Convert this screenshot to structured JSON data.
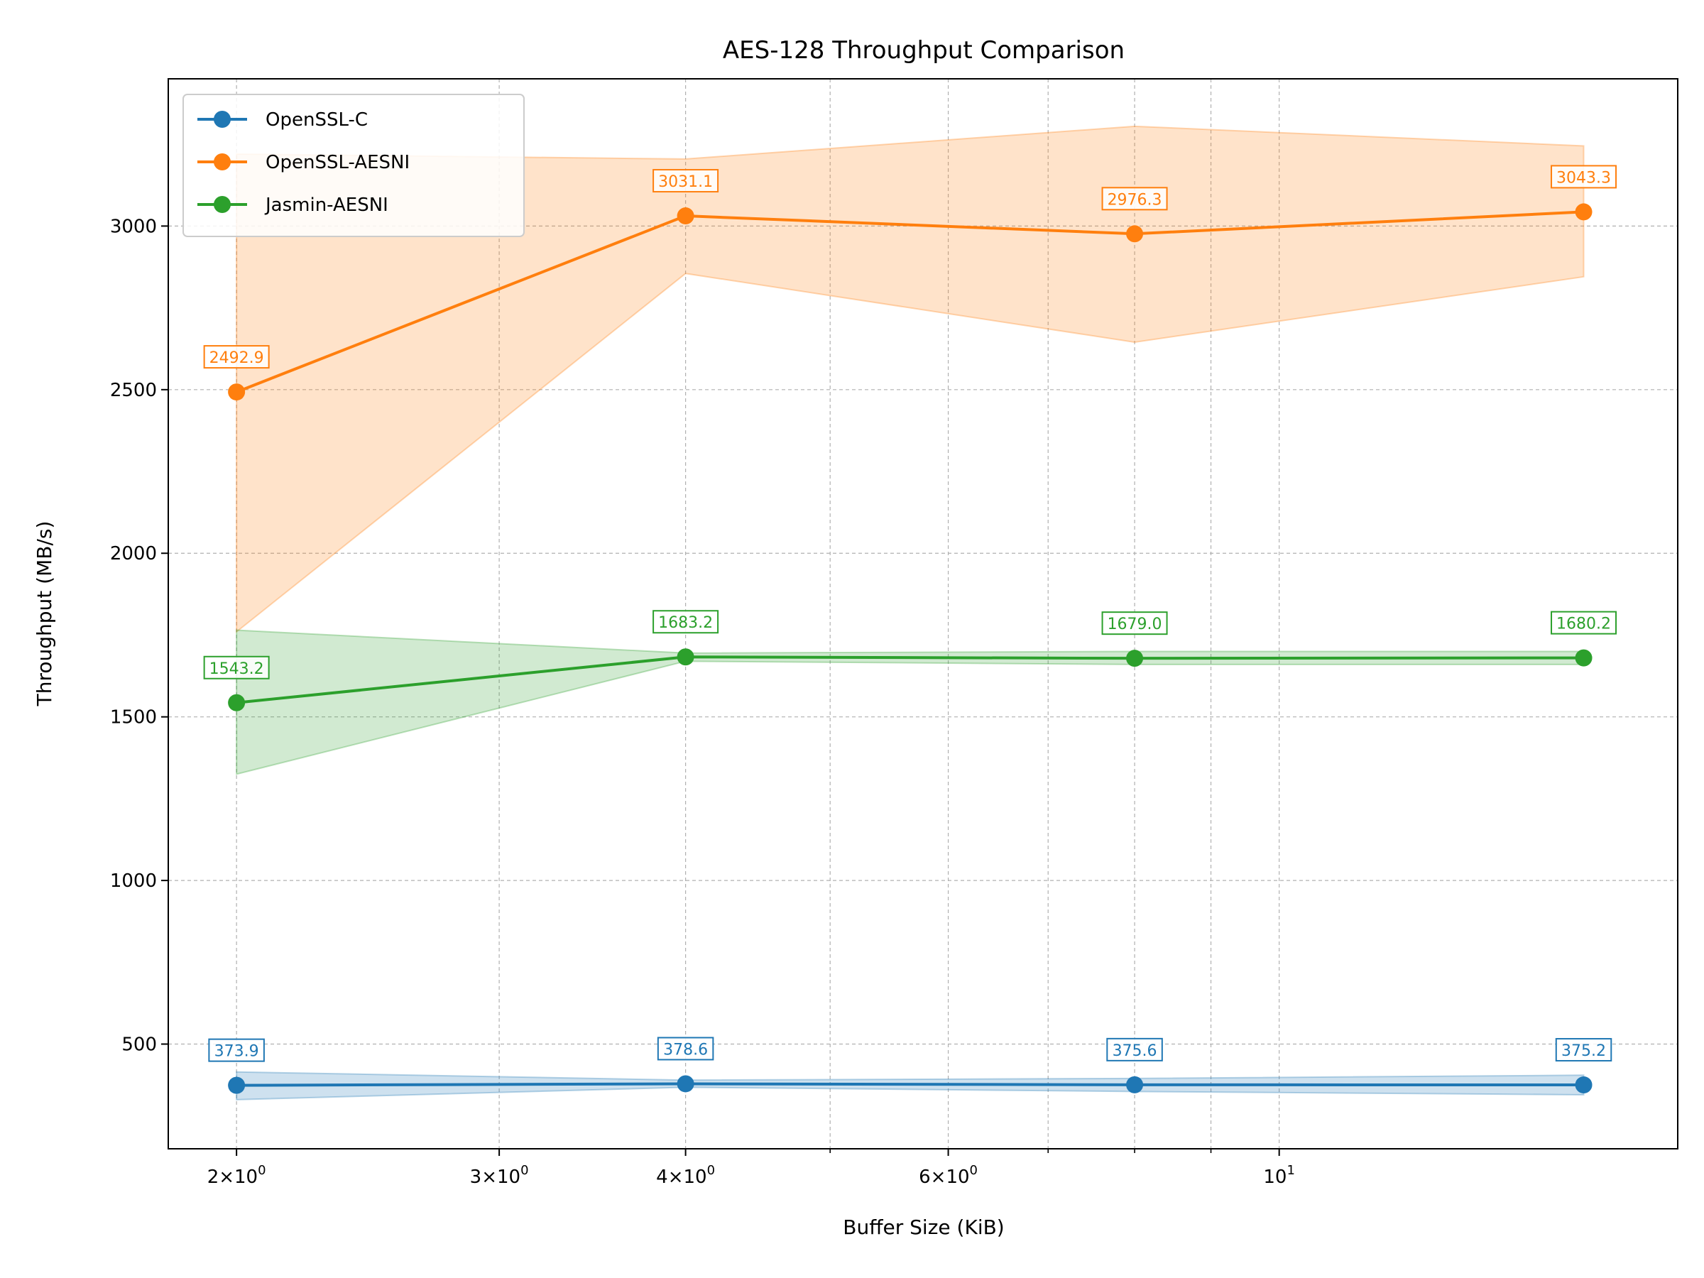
{
  "chart_data": {
    "type": "line",
    "title": "AES-128 Throughput Comparison",
    "xlabel": "Buffer Size (KiB)",
    "ylabel": "Throughput (MB/s)",
    "x_scale": "log",
    "x": [
      2,
      4,
      8,
      16
    ],
    "xlim": [
      1.8,
      18.5
    ],
    "ylim": [
      180,
      3450
    ],
    "x_ticks": [
      {
        "value": 2,
        "base": "2×10",
        "exp": "0"
      },
      {
        "value": 3,
        "base": "3×10",
        "exp": "0"
      },
      {
        "value": 4,
        "base": "4×10",
        "exp": "0"
      },
      {
        "value": 6,
        "base": "6×10",
        "exp": "0"
      },
      {
        "value": 10,
        "base": "10",
        "exp": "1"
      }
    ],
    "x_minor_ticks": [
      5,
      7,
      8,
      9
    ],
    "y_ticks": [
      500,
      1000,
      1500,
      2000,
      2500,
      3000
    ],
    "grid": true,
    "legend_position": "upper-left",
    "series": [
      {
        "name": "OpenSSL-C",
        "color": "#1f77b4",
        "values": [
          373.9,
          378.6,
          375.6,
          375.2
        ],
        "labels": [
          "373.9",
          "378.6",
          "375.6",
          "375.2"
        ],
        "lower": [
          330,
          368,
          355,
          345
        ],
        "upper": [
          415,
          390,
          395,
          405
        ]
      },
      {
        "name": "OpenSSL-AESNI",
        "color": "#ff7f0e",
        "values": [
          2492.9,
          3031.1,
          2976.3,
          3043.3
        ],
        "labels": [
          "2492.9",
          "3031.1",
          "2976.3",
          "3043.3"
        ],
        "lower": [
          1760,
          2855,
          2645,
          2845
        ],
        "upper": [
          3220,
          3205,
          3305,
          3245
        ]
      },
      {
        "name": "Jasmin-AESNI",
        "color": "#2ca02c",
        "values": [
          1543.2,
          1683.2,
          1679.0,
          1680.2
        ],
        "labels": [
          "1543.2",
          "1683.2",
          "1679.0",
          "1680.2"
        ],
        "lower": [
          1325,
          1670,
          1660,
          1660
        ],
        "upper": [
          1765,
          1695,
          1700,
          1700
        ]
      }
    ]
  }
}
